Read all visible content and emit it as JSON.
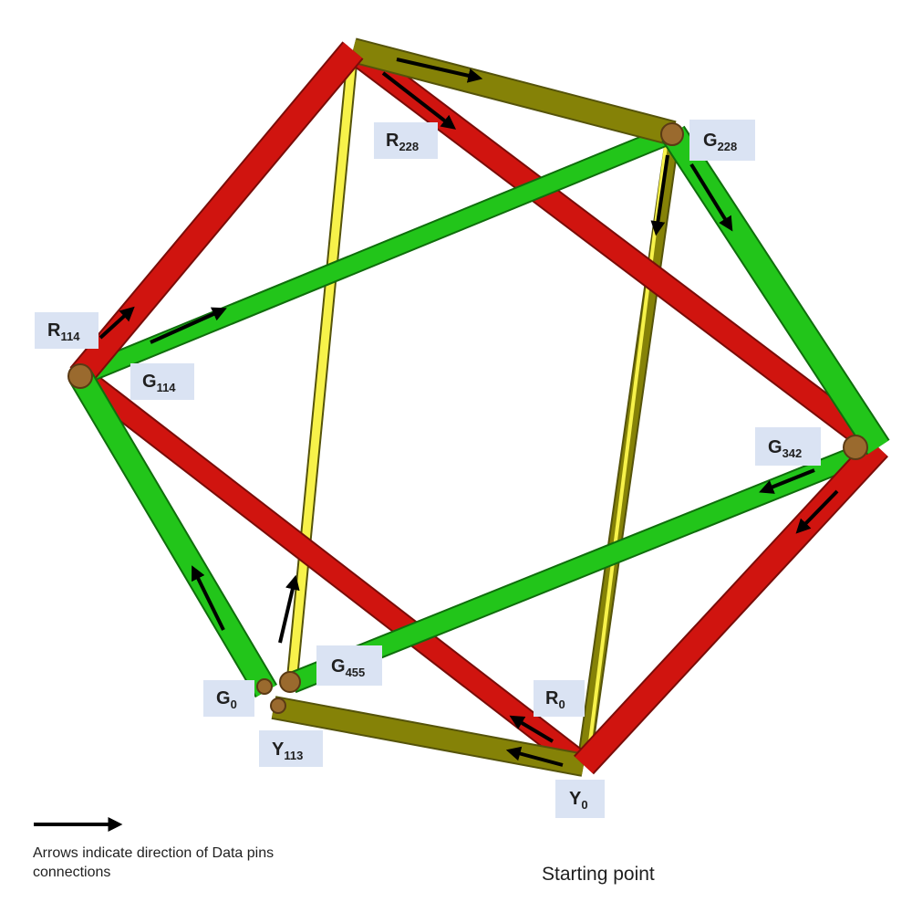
{
  "colors": {
    "red": "#d0140f",
    "red_dark": "#7a0c08",
    "green": "#22c51a",
    "green_dark": "#0f6e0c",
    "yellow": "#f7f24a",
    "olive": "#858207",
    "olive_dark": "#55530a",
    "joint": "#9a6a2e",
    "label_box": "#dae3f3",
    "arrow": "#000000"
  },
  "labels": {
    "R114": {
      "base": "R",
      "sub": "114"
    },
    "G114": {
      "base": "G",
      "sub": "114"
    },
    "R228": {
      "base": "R",
      "sub": "228"
    },
    "G228": {
      "base": "G",
      "sub": "228"
    },
    "G342": {
      "base": "G",
      "sub": "342"
    },
    "G455": {
      "base": "G",
      "sub": "455"
    },
    "G0": {
      "base": "G",
      "sub": "0"
    },
    "R0": {
      "base": "R",
      "sub": "0"
    },
    "Y113": {
      "base": "Y",
      "sub": "113"
    },
    "Y0": {
      "base": "Y",
      "sub": "0"
    }
  },
  "legend": {
    "text": "Arrows indicate direction of Data pins connections"
  },
  "starting_point": "Starting point"
}
